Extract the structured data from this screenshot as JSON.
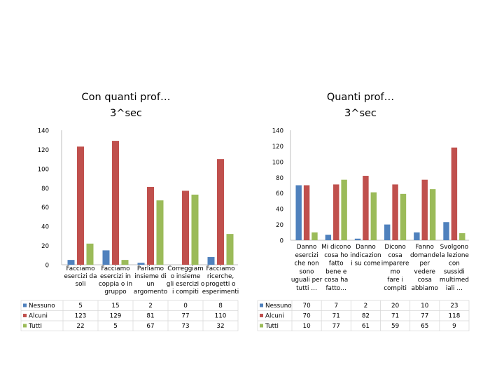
{
  "colors": {
    "Nessuno": "#4f81bd",
    "Alcuni": "#c0504d",
    "Tutti": "#9bbb59",
    "grid": "#d9d9d9",
    "axis": "#bfbfbf",
    "text": "#000000"
  },
  "chart_data": [
    {
      "type": "bar",
      "title": [
        "Con quanti prof…",
        "3^sec"
      ],
      "ylim": [
        0,
        140
      ],
      "yticks": [
        0,
        20,
        40,
        60,
        80,
        100,
        120,
        140
      ],
      "grid": false,
      "legend": "table-left",
      "categories": [
        [
          "Facciamo",
          "esercizi da",
          "soli"
        ],
        [
          "Facciamo",
          "esercizi in",
          "coppia o in",
          "gruppo"
        ],
        [
          "Parliamo",
          "insieme di",
          "un",
          "argomento"
        ],
        [
          "Correggiam",
          "o insieme",
          "gli esercizi o",
          "i compiti"
        ],
        [
          "Facciamo",
          "ricerche,",
          "progetti o",
          "esperimenti"
        ]
      ],
      "series": [
        {
          "name": "Nessuno",
          "values": [
            5,
            15,
            2,
            0,
            8
          ]
        },
        {
          "name": "Alcuni",
          "values": [
            123,
            129,
            81,
            77,
            110
          ]
        },
        {
          "name": "Tutti",
          "values": [
            22,
            5,
            67,
            73,
            32
          ]
        }
      ]
    },
    {
      "type": "bar",
      "title": [
        "Quanti prof…",
        "3^sec"
      ],
      "ylim": [
        0,
        140
      ],
      "yticks": [
        0,
        20,
        40,
        60,
        80,
        100,
        120,
        140
      ],
      "grid": false,
      "legend": "table-left",
      "categories": [
        [
          "Danno",
          "esercizi",
          "che non",
          "sono",
          "uguali per",
          "tutti …"
        ],
        [
          "Mi dicono",
          "cosa ho",
          "fatto",
          "bene e",
          "cosa ha",
          "fatto…"
        ],
        [
          "Danno",
          "indicazion",
          "i su come"
        ],
        [
          "Dicono",
          "cosa",
          "imparere",
          "mo",
          "fare i",
          "compiti"
        ],
        [
          "Fanno",
          "domande",
          "per",
          "vedere",
          "cosa",
          "abbiamo"
        ],
        [
          "Svolgono",
          "la lezione",
          "con",
          "sussidi",
          "multimed",
          "iali …"
        ]
      ],
      "series": [
        {
          "name": "Nessuno",
          "values": [
            70,
            7,
            2,
            20,
            10,
            23
          ]
        },
        {
          "name": "Alcuni",
          "values": [
            70,
            71,
            82,
            71,
            77,
            118
          ]
        },
        {
          "name": "Tutti",
          "values": [
            10,
            77,
            61,
            59,
            65,
            9
          ]
        }
      ]
    }
  ]
}
